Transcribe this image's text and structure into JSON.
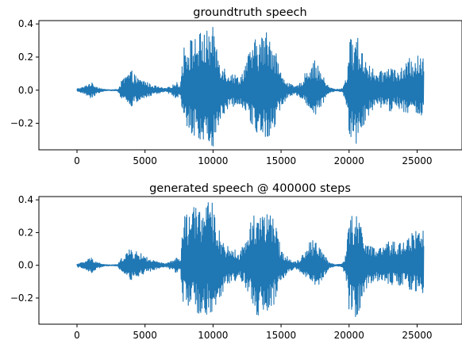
{
  "chart_data": [
    {
      "type": "line",
      "title": "groundtruth speech",
      "xlabel": "",
      "ylabel": "",
      "xlim": [
        -2800,
        28300
      ],
      "ylim": [
        -0.36,
        0.42
      ],
      "xticks": [
        0,
        5000,
        10000,
        15000,
        20000,
        25000
      ],
      "xtick_labels": [
        "0",
        "5000",
        "10000",
        "15000",
        "20000",
        "25000"
      ],
      "yticks": [
        -0.2,
        0.0,
        0.2,
        0.4
      ],
      "ytick_labels": [
        "−0.2",
        "0.0",
        "0.2",
        "0.4"
      ],
      "grid": false,
      "color": "#1f77b4",
      "series": [
        {
          "x": [
            0,
            500,
            1000,
            1500,
            2000,
            2500,
            3000,
            3300,
            3700,
            4000,
            4500,
            5000,
            5300,
            5600,
            6000,
            6500,
            7000,
            7300,
            7600,
            7800,
            8000,
            8500,
            9000,
            9500,
            10000,
            10500,
            11000,
            11500,
            12000,
            12500,
            13000,
            13500,
            14000,
            14500,
            15000,
            15500,
            16000,
            16500,
            17000,
            17500,
            18000,
            18500,
            19000,
            19500,
            19800,
            20000,
            20500,
            21000,
            21500,
            22000,
            22500,
            23000,
            23500,
            24000,
            24500,
            25000,
            25500
          ],
          "y_max": [
            0.01,
            0.02,
            0.05,
            0.02,
            0.005,
            0.003,
            0.005,
            0.06,
            0.1,
            0.12,
            0.07,
            0.06,
            0.04,
            0.03,
            0.02,
            0.01,
            0.03,
            0.05,
            0.03,
            0.25,
            0.3,
            0.32,
            0.35,
            0.36,
            0.38,
            0.2,
            0.12,
            0.1,
            0.08,
            0.2,
            0.3,
            0.33,
            0.37,
            0.3,
            0.1,
            0.05,
            0.02,
            0.05,
            0.15,
            0.18,
            0.1,
            0.02,
            0.005,
            0.01,
            0.08,
            0.3,
            0.35,
            0.24,
            0.16,
            0.1,
            0.12,
            0.16,
            0.12,
            0.14,
            0.2,
            0.21,
            0.2
          ],
          "y_min": [
            -0.01,
            -0.02,
            -0.05,
            -0.02,
            -0.005,
            -0.003,
            -0.005,
            -0.06,
            -0.09,
            -0.1,
            -0.07,
            -0.05,
            -0.04,
            -0.03,
            -0.02,
            -0.01,
            -0.03,
            -0.05,
            -0.03,
            -0.22,
            -0.25,
            -0.27,
            -0.3,
            -0.32,
            -0.34,
            -0.2,
            -0.12,
            -0.1,
            -0.08,
            -0.15,
            -0.25,
            -0.3,
            -0.29,
            -0.25,
            -0.1,
            -0.05,
            -0.02,
            -0.05,
            -0.12,
            -0.15,
            -0.1,
            -0.02,
            -0.005,
            -0.01,
            -0.1,
            -0.28,
            -0.33,
            -0.22,
            -0.16,
            -0.12,
            -0.1,
            -0.14,
            -0.1,
            -0.13,
            -0.15,
            -0.16,
            -0.15
          ]
        }
      ]
    },
    {
      "type": "line",
      "title": "generated speech @ 400000 steps",
      "xlabel": "",
      "ylabel": "",
      "xlim": [
        -2800,
        28300
      ],
      "ylim": [
        -0.36,
        0.42
      ],
      "xticks": [
        0,
        5000,
        10000,
        15000,
        20000,
        25000
      ],
      "xtick_labels": [
        "0",
        "5000",
        "10000",
        "15000",
        "20000",
        "25000"
      ],
      "yticks": [
        -0.2,
        0.0,
        0.2,
        0.4
      ],
      "ytick_labels": [
        "−0.2",
        "0.0",
        "0.2",
        "0.4"
      ],
      "grid": false,
      "color": "#1f77b4",
      "series": [
        {
          "x": [
            0,
            500,
            1000,
            1500,
            2000,
            2500,
            3000,
            3300,
            3700,
            4000,
            4500,
            5000,
            5300,
            5600,
            6000,
            6500,
            7000,
            7300,
            7600,
            7800,
            8000,
            8500,
            9000,
            9500,
            10000,
            10500,
            11000,
            11500,
            12000,
            12500,
            13000,
            13500,
            14000,
            14500,
            15000,
            15500,
            16000,
            16500,
            17000,
            17500,
            18000,
            18500,
            19000,
            19500,
            19800,
            20000,
            20500,
            21000,
            21500,
            22000,
            22500,
            23000,
            23500,
            24000,
            24500,
            25000,
            25500
          ],
          "y_max": [
            0.01,
            0.02,
            0.05,
            0.02,
            0.005,
            0.003,
            0.005,
            0.05,
            0.09,
            0.1,
            0.08,
            0.06,
            0.04,
            0.03,
            0.02,
            0.01,
            0.03,
            0.05,
            0.03,
            0.28,
            0.32,
            0.35,
            0.38,
            0.39,
            0.38,
            0.2,
            0.12,
            0.1,
            0.08,
            0.2,
            0.33,
            0.35,
            0.34,
            0.28,
            0.1,
            0.05,
            0.02,
            0.05,
            0.14,
            0.16,
            0.1,
            0.02,
            0.005,
            0.01,
            0.08,
            0.3,
            0.32,
            0.24,
            0.12,
            0.1,
            0.12,
            0.15,
            0.14,
            0.16,
            0.2,
            0.22,
            0.25
          ],
          "y_min": [
            -0.01,
            -0.02,
            -0.05,
            -0.02,
            -0.005,
            -0.003,
            -0.005,
            -0.05,
            -0.08,
            -0.09,
            -0.07,
            -0.05,
            -0.04,
            -0.03,
            -0.02,
            -0.01,
            -0.03,
            -0.05,
            -0.03,
            -0.24,
            -0.26,
            -0.28,
            -0.3,
            -0.31,
            -0.32,
            -0.2,
            -0.12,
            -0.1,
            -0.08,
            -0.16,
            -0.28,
            -0.33,
            -0.3,
            -0.24,
            -0.1,
            -0.05,
            -0.02,
            -0.05,
            -0.11,
            -0.14,
            -0.1,
            -0.02,
            -0.005,
            -0.01,
            -0.1,
            -0.28,
            -0.32,
            -0.24,
            -0.12,
            -0.1,
            -0.1,
            -0.12,
            -0.12,
            -0.13,
            -0.15,
            -0.16,
            -0.17
          ]
        }
      ]
    }
  ]
}
